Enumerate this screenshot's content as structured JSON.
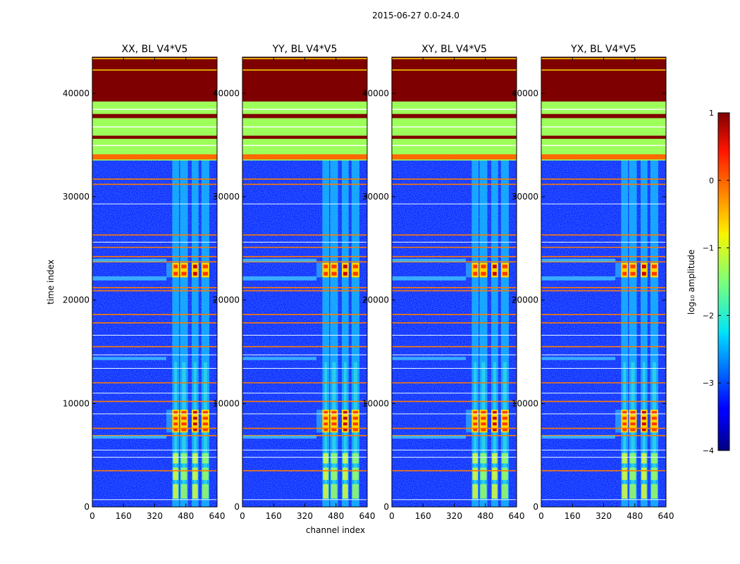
{
  "figure": {
    "suptitle": "2015-06-27 0.0-24.0"
  },
  "chart_data": {
    "type": "heatmap",
    "x_axis": {
      "label": "channel index",
      "range": [
        0,
        640
      ],
      "ticks": [
        0,
        160,
        320,
        480,
        640
      ],
      "tick_labels": [
        "0",
        "160",
        "320",
        "480",
        "640"
      ]
    },
    "y_axis": {
      "label": "time index",
      "range": [
        0,
        43500
      ],
      "ticks": [
        0,
        10000,
        20000,
        30000,
        40000
      ],
      "tick_labels": [
        "0",
        "10000",
        "20000",
        "30000",
        "40000"
      ]
    },
    "panels": [
      {
        "title": "XX, BL V4*V5",
        "label_x": "",
        "label_y": "time index"
      },
      {
        "title": "YY, BL V4*V5",
        "label_x": "channel index",
        "label_y": ""
      },
      {
        "title": "XY, BL V4*V5",
        "label_x": "",
        "label_y": ""
      },
      {
        "title": "YX, BL V4*V5",
        "label_x": "",
        "label_y": ""
      }
    ],
    "colorbar": {
      "label": "log₁₀ amplitude",
      "range": [
        -4,
        1
      ],
      "ticks": [
        1,
        0,
        -1,
        -2,
        -3,
        -4
      ],
      "tick_labels": [
        "1",
        "0",
        "−1",
        "−2",
        "−3",
        "−4"
      ],
      "colormap": "jet"
    },
    "features": {
      "flagged_top_block": {
        "time_range": [
          39200,
          43500
        ],
        "value": 1
      },
      "green_band_region": {
        "time_range": [
          33500,
          39200
        ],
        "value": -1.5
      },
      "rfi_channel_columns": [
        [
          410,
          445
        ],
        [
          450,
          490
        ],
        [
          510,
          545
        ],
        [
          560,
          600
        ]
      ],
      "strong_rfi_time_ranges": [
        [
          22200,
          23600
        ],
        [
          7200,
          9400
        ]
      ],
      "orange_flag_lines": [
        31200,
        31700,
        26300,
        25100,
        24200,
        23700,
        21200,
        20900,
        18600,
        17800,
        15500,
        12000,
        10200,
        7600,
        6900,
        3500
      ],
      "white_flag_lines": [
        29300,
        25600,
        16600,
        14700,
        13400,
        11000,
        9000,
        5500,
        4800,
        700
      ]
    }
  },
  "colors": {
    "background": "#ffffff",
    "axis": "#000000",
    "jet_low": "#00007f",
    "jet_high": "#7f0000"
  }
}
